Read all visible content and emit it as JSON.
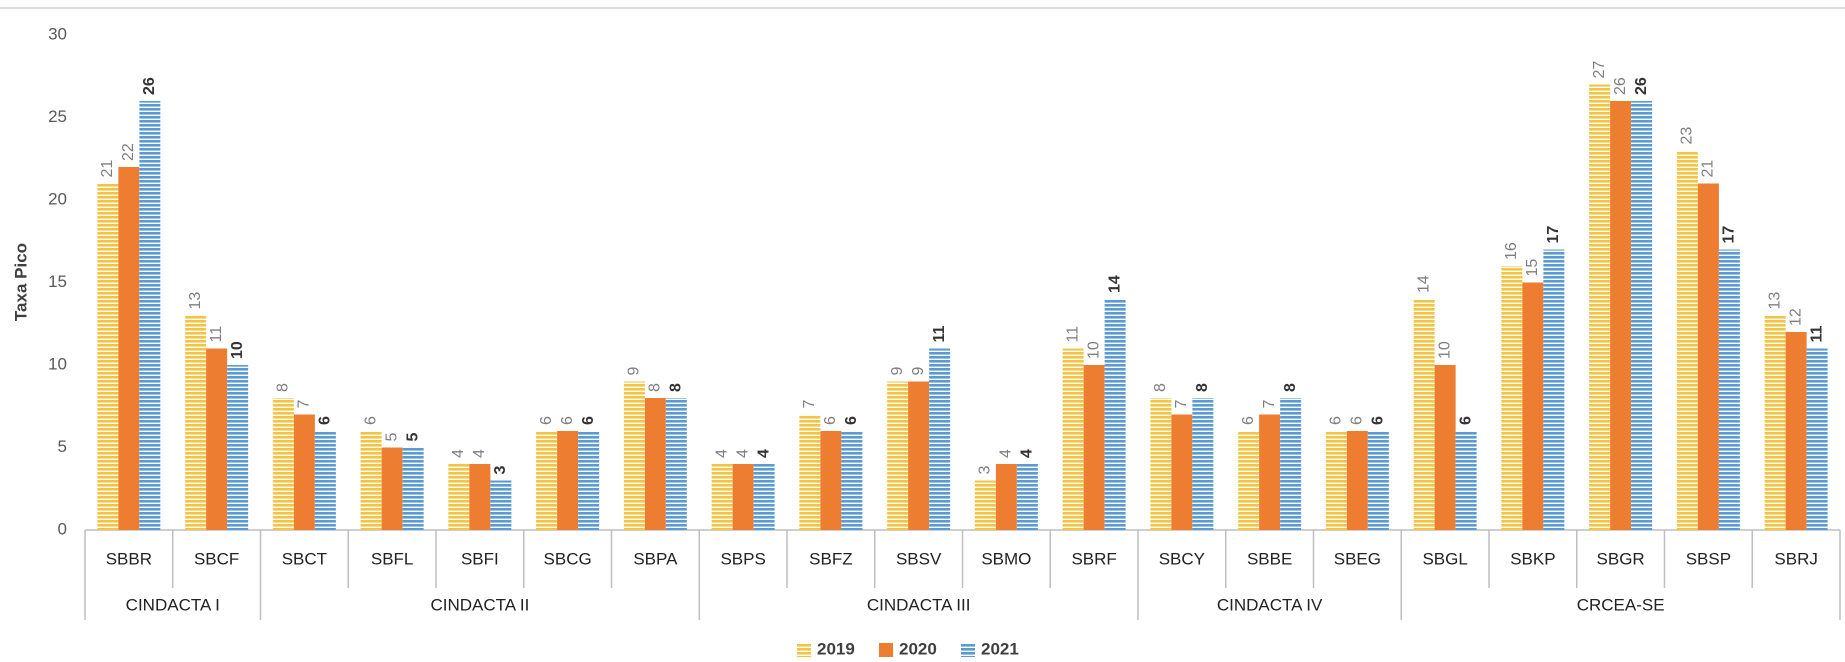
{
  "chart_data": {
    "type": "bar",
    "y_label": "Taxa Pico",
    "groups": [
      {
        "name": "CINDACTA I",
        "categories": [
          "SBBR",
          "SBCF"
        ]
      },
      {
        "name": "CINDACTA II",
        "categories": [
          "SBCT",
          "SBFL",
          "SBFI",
          "SBCG",
          "SBPA"
        ]
      },
      {
        "name": "CINDACTA III",
        "categories": [
          "SBPS",
          "SBFZ",
          "SBSV",
          "SBMO",
          "SBRF"
        ]
      },
      {
        "name": "CINDACTA IV",
        "categories": [
          "SBCY",
          "SBBE",
          "SBEG"
        ]
      },
      {
        "name": "CRCEA-SE",
        "categories": [
          "SBGL",
          "SBKP",
          "SBGR",
          "SBSP",
          "SBRJ"
        ]
      }
    ],
    "series": [
      {
        "name": "2019",
        "color": "#f5c342",
        "values": [
          21,
          13,
          8,
          6,
          4,
          6,
          9,
          4,
          7,
          9,
          3,
          11,
          8,
          6,
          6,
          14,
          16,
          27,
          23,
          13
        ]
      },
      {
        "name": "2020",
        "color": "#ed7d31",
        "values": [
          22,
          11,
          7,
          5,
          4,
          6,
          8,
          4,
          6,
          9,
          4,
          10,
          7,
          7,
          6,
          10,
          15,
          26,
          21,
          12
        ]
      },
      {
        "name": "2021",
        "color": "#5b9bd5",
        "values": [
          26,
          10,
          6,
          5,
          3,
          6,
          8,
          4,
          6,
          11,
          4,
          14,
          8,
          8,
          6,
          6,
          17,
          26,
          17,
          11
        ]
      }
    ],
    "ylim": [
      0,
      30
    ],
    "yticks": [
      0,
      5,
      10,
      15,
      20,
      25,
      30
    ],
    "grid": false,
    "legend": "bottom"
  }
}
